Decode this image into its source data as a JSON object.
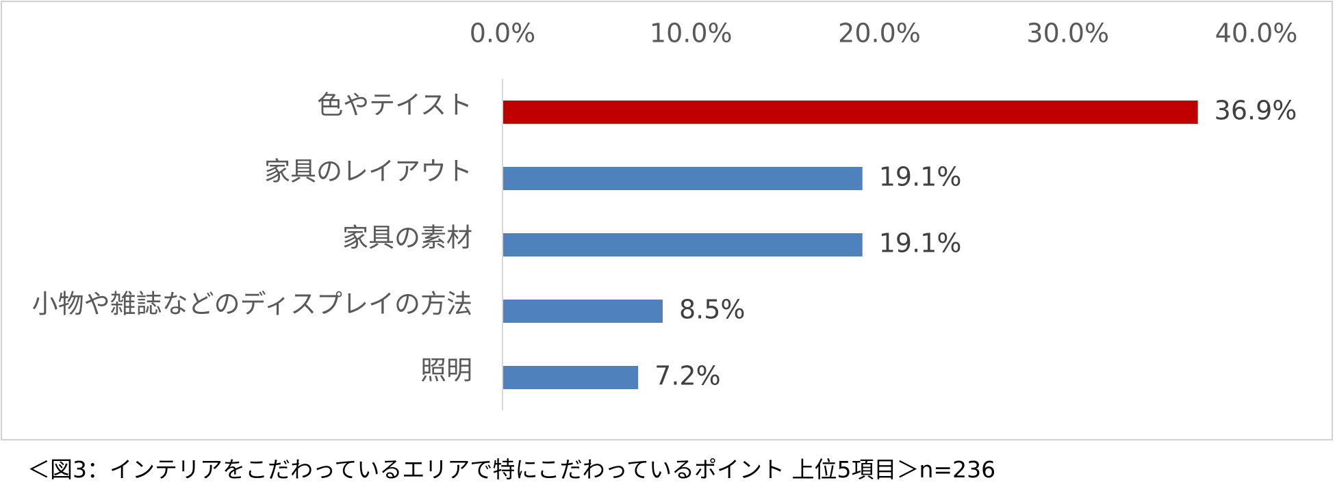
{
  "chart_data": {
    "type": "bar",
    "orientation": "horizontal",
    "categories": [
      "色やテイスト",
      "家具のレイアウト",
      "家具の素材",
      "小物や雑誌などのディスプレイの方法",
      "照明"
    ],
    "values": [
      36.9,
      19.1,
      19.1,
      8.5,
      7.2
    ],
    "data_labels": [
      "36.9%",
      "19.1%",
      "19.1%",
      "8.5%",
      "7.2%"
    ],
    "colors": [
      "#c00000",
      "#4f81bd",
      "#4f81bd",
      "#4f81bd",
      "#4f81bd"
    ],
    "xlim": [
      0,
      40
    ],
    "x_ticks": [
      0,
      10,
      20,
      30,
      40
    ],
    "x_tick_labels": [
      "0.0%",
      "10.0%",
      "20.0%",
      "30.0%",
      "40.0%"
    ],
    "x_axis_position": "top",
    "grid": false
  },
  "caption": "＜図3：インテリアをこだわっているエリアで特にこだわっているポイント 上位5項目＞n=236"
}
